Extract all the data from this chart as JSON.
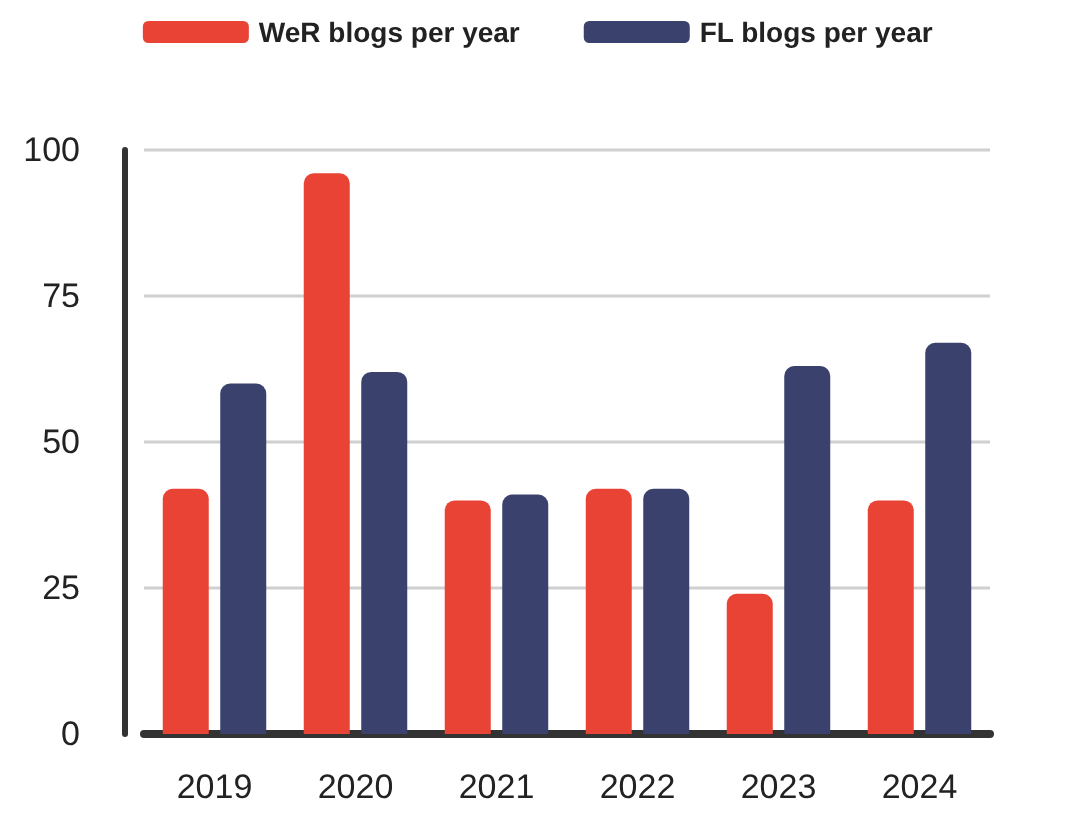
{
  "chart_data": {
    "type": "bar",
    "categories": [
      "2019",
      "2020",
      "2021",
      "2022",
      "2023",
      "2024"
    ],
    "series": [
      {
        "name": "WeR blogs per year",
        "color": "#e94335",
        "values": [
          42,
          96,
          40,
          42,
          24,
          40
        ]
      },
      {
        "name": "FL blogs per year",
        "color": "#3a416c",
        "values": [
          60,
          62,
          41,
          42,
          63,
          67
        ]
      }
    ],
    "ylim": [
      0,
      100
    ],
    "yticks": [
      0,
      25,
      50,
      75,
      100
    ],
    "grid": "y",
    "legend": "top"
  }
}
